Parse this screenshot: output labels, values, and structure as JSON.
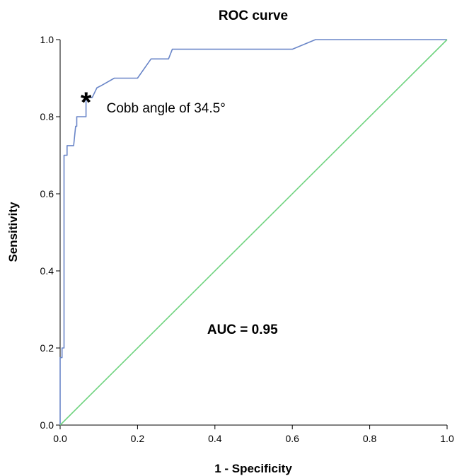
{
  "chart_data": {
    "type": "line",
    "title": "ROC curve",
    "xlabel": "1 - Specificity",
    "ylabel": "Sensitivity",
    "xlim": [
      0,
      1
    ],
    "ylim": [
      0,
      1
    ],
    "x_ticks": [
      "0.0",
      "0.2",
      "0.4",
      "0.6",
      "0.8",
      "1.0"
    ],
    "y_ticks": [
      "0.0",
      "0.2",
      "0.4",
      "0.6",
      "0.8",
      "1.0"
    ],
    "grid": false,
    "series": [
      {
        "color": "#6a86c8",
        "points": [
          [
            0.0,
            0.0
          ],
          [
            0.0,
            0.175
          ],
          [
            0.005,
            0.175
          ],
          [
            0.005,
            0.2
          ],
          [
            0.01,
            0.2
          ],
          [
            0.01,
            0.7
          ],
          [
            0.018,
            0.7
          ],
          [
            0.018,
            0.725
          ],
          [
            0.035,
            0.725
          ],
          [
            0.04,
            0.775
          ],
          [
            0.043,
            0.775
          ],
          [
            0.043,
            0.8
          ],
          [
            0.06,
            0.8
          ],
          [
            0.067,
            0.8
          ],
          [
            0.067,
            0.85
          ],
          [
            0.083,
            0.85
          ],
          [
            0.095,
            0.875
          ],
          [
            0.105,
            0.88
          ],
          [
            0.14,
            0.9
          ],
          [
            0.2,
            0.9
          ],
          [
            0.235,
            0.95
          ],
          [
            0.28,
            0.95
          ],
          [
            0.29,
            0.975
          ],
          [
            0.6,
            0.975
          ],
          [
            0.66,
            1.0
          ],
          [
            1.0,
            1.0
          ]
        ]
      },
      {
        "color": "#6fd37f",
        "points": [
          [
            0,
            0
          ],
          [
            1,
            1
          ]
        ]
      }
    ],
    "annotations": [
      {
        "text": "Cobb angle of 34.5°",
        "x": 0.12,
        "y": 0.82,
        "marker": "*",
        "marker_x": 0.067,
        "marker_y": 0.85
      },
      {
        "text": "AUC = 0.95",
        "x": 0.38,
        "y": 0.25
      }
    ]
  }
}
